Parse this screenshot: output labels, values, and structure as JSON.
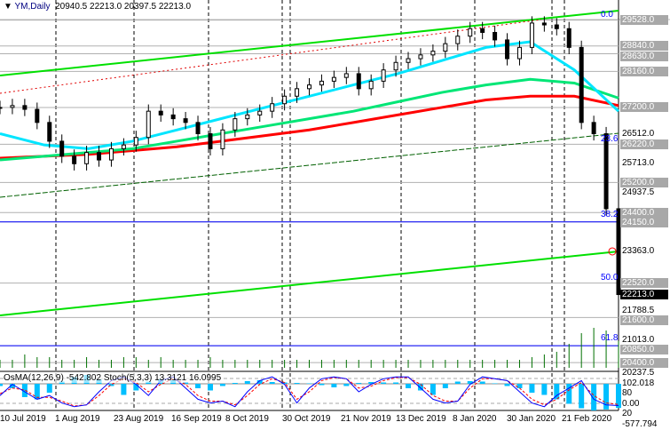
{
  "header": {
    "symbol": "YM,Daily",
    "ohlc": "20940.5 22213.0 20397.5 22213.0"
  },
  "indicator": {
    "label": "OsMA(12,26,9) -542.802  Stoch(5,3,3) 13.3121 16.0995"
  },
  "price_axis": {
    "levels_grey": [
      "29528.0",
      "28840.0",
      "28630.0",
      "28160.0",
      "27200.0",
      "26220.0",
      "25200.0",
      "24400.0",
      "24150.0",
      "22520.0",
      "21600.0",
      "20850.0",
      "20400.0"
    ],
    "ticks": [
      "26512.0",
      "25713.0",
      "24937.5",
      "23363.0",
      "21788.5",
      "21013.0",
      "20237.5"
    ],
    "current": "22213.0",
    "ind_ticks": [
      "102.018",
      "80",
      "0.00",
      "20",
      "-577.794"
    ]
  },
  "fib_labels": [
    "0.0",
    "23.6",
    "38.2",
    "50.0",
    "61.8"
  ],
  "time_axis": [
    "10 Jul 2019",
    "1 Aug 2019",
    "23 Aug 2019",
    "16 Sep 2019",
    "8 Oct 2019",
    "30 Oct 2019",
    "21 Nov 2019",
    "13 Dec 2019",
    "8 Jan 2020",
    "30 Jan 2020",
    "21 Feb 2020"
  ],
  "colors": {
    "candles": "#000000",
    "ma_fast": "#00e5ff",
    "ma_mid": "#00e676",
    "ma_slow": "#ff0000",
    "channel": "#00e000",
    "hline": "#0000ff",
    "volume": "#007000",
    "osma": "#00bfff",
    "stoch_main": "#0000ff",
    "stoch_signal": "#ff0000"
  },
  "chart_data": {
    "type": "candlestick",
    "closes": [
      27200,
      27250,
      27150,
      26800,
      26300,
      25900,
      25700,
      26000,
      25800,
      26100,
      26200,
      26400,
      27100,
      27000,
      26900,
      26800,
      26500,
      26100,
      26600,
      26900,
      27000,
      27100,
      27300,
      27500,
      27700,
      27800,
      27900,
      28000,
      28100,
      27700,
      27900,
      28200,
      28400,
      28500,
      28600,
      28700,
      28900,
      29100,
      29300,
      29200,
      29000,
      28500,
      28800,
      29450,
      29400,
      29300,
      28800,
      26800,
      26500,
      24500,
      22213
    ],
    "ma_fast": [
      26500,
      26200,
      26100,
      26300,
      26600,
      26900,
      27200,
      27500,
      27800,
      28100,
      28450,
      28800,
      28950,
      28200,
      27100
    ],
    "ma_mid": [
      25800,
      25900,
      26000,
      26100,
      26300,
      26500,
      26700,
      26900,
      27100,
      27350,
      27600,
      27800,
      27950,
      27850,
      27450
    ],
    "ma_slow": [
      25850,
      25900,
      25950,
      26050,
      26150,
      26300,
      26450,
      26600,
      26800,
      27000,
      27200,
      27400,
      27500,
      27500,
      27250
    ],
    "osma": [
      -50,
      -100,
      -300,
      -350,
      -200,
      50,
      150,
      200,
      100,
      -50,
      -250,
      -150,
      50,
      100,
      80,
      40,
      -100,
      -150,
      -50,
      20,
      60,
      80,
      40,
      30,
      20,
      10,
      -30,
      -80,
      -50,
      20,
      40,
      30,
      30,
      -100,
      -150,
      -250,
      -100,
      50,
      60,
      50,
      10,
      -50,
      -100,
      -200,
      -250,
      -350,
      -450,
      -550,
      -600,
      -577,
      -543
    ],
    "stoch_main": [
      40,
      70,
      50,
      30,
      40,
      20,
      10,
      15,
      50,
      80,
      90,
      70,
      40,
      80,
      90,
      60,
      30,
      20,
      25,
      10,
      50,
      80,
      90,
      70,
      20,
      60,
      85,
      90,
      85,
      50,
      70,
      85,
      90,
      90,
      60,
      30,
      20,
      25,
      70,
      90,
      85,
      80,
      50,
      20,
      10,
      40,
      60,
      80,
      30,
      15,
      13
    ],
    "stoch_signal": [
      45,
      60,
      55,
      35,
      35,
      25,
      12,
      15,
      40,
      70,
      85,
      75,
      50,
      70,
      85,
      70,
      40,
      25,
      25,
      15,
      40,
      70,
      85,
      75,
      30,
      50,
      80,
      88,
      85,
      60,
      65,
      80,
      88,
      88,
      70,
      40,
      25,
      25,
      60,
      85,
      85,
      80,
      60,
      30,
      15,
      30,
      55,
      75,
      40,
      20,
      16
    ],
    "volume": [
      3,
      3,
      5,
      4,
      4,
      3,
      3,
      4,
      3,
      3,
      4,
      4,
      3,
      4,
      3,
      3,
      3,
      4,
      3,
      3,
      3,
      3,
      3,
      3,
      3,
      3,
      3,
      3,
      3,
      3,
      3,
      3,
      3,
      3,
      3,
      3,
      3,
      3,
      3,
      3,
      3,
      3,
      3,
      4,
      5,
      6,
      9,
      13,
      15,
      14,
      10
    ],
    "ylim": [
      20237.5,
      29528
    ]
  }
}
